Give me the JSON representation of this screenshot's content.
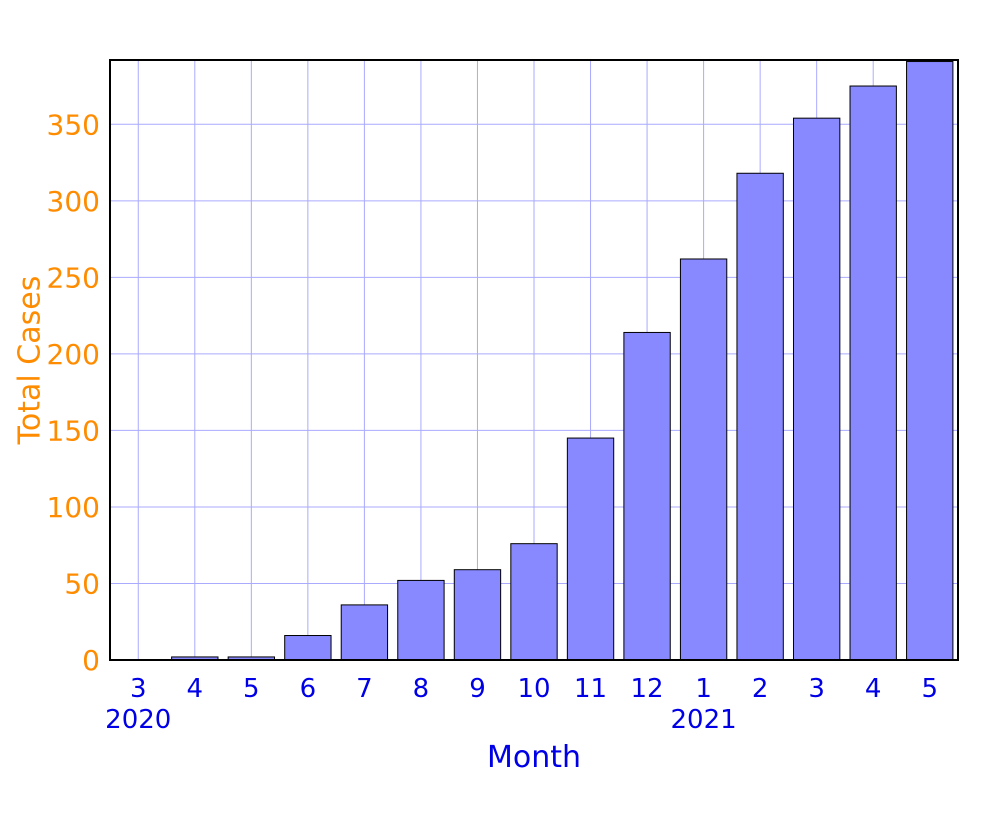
{
  "chart_data": {
    "type": "bar",
    "xlabel": "Month",
    "ylabel": "Total Cases",
    "ylim": [
      0,
      392
    ],
    "yticks": [
      0,
      50,
      100,
      150,
      200,
      250,
      300,
      350
    ],
    "categories": [
      "3",
      "4",
      "5",
      "6",
      "7",
      "8",
      "9",
      "10",
      "11",
      "12",
      "1",
      "2",
      "3",
      "4",
      "5"
    ],
    "year_labels": [
      {
        "category_index": 0,
        "label": "2020"
      },
      {
        "category_index": 10,
        "label": "2021"
      }
    ],
    "values": [
      0,
      2,
      2,
      16,
      36,
      52,
      59,
      76,
      145,
      214,
      262,
      318,
      354,
      375,
      391
    ],
    "grid": true,
    "colors": {
      "bar_fill": "#8888ff",
      "bar_stroke": "#000000",
      "grid": "#aaaaff",
      "y_axis_text": "#ff8c00",
      "x_axis_text": "#0000e6",
      "frame": "#000000"
    }
  }
}
